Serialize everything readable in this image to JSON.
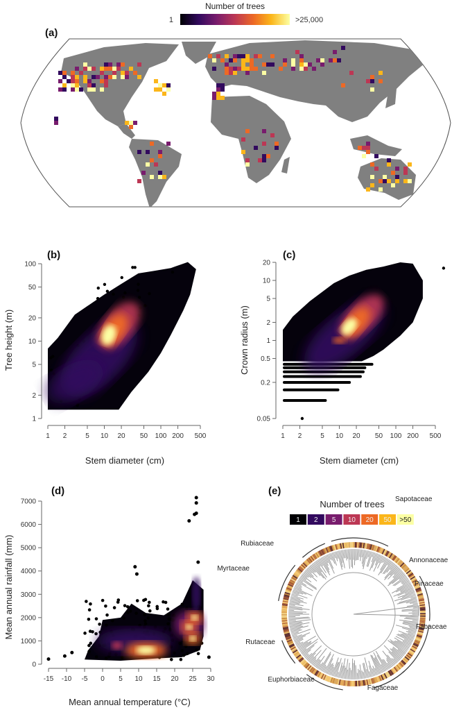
{
  "colors": {
    "inferno": [
      "#000004",
      "#320a5e",
      "#781c6d",
      "#bc3754",
      "#ed6925",
      "#fbb61a",
      "#fcffa4"
    ],
    "land": "#808080",
    "tree_branches": "#9a9a9a"
  },
  "chart_data": [
    {
      "panel": "(a)",
      "type": "heatmap",
      "legend": {
        "title": "Number of trees",
        "min_label": "1",
        "max_label": ">25,000",
        "colormap": "inferno",
        "placement": "top-center"
      },
      "projection": "world map"
    },
    {
      "panel": "(b)",
      "type": "scatter",
      "xlabel": "Stem diameter (cm)",
      "ylabel": "Tree height (m)",
      "xscale": "log",
      "yscale": "log",
      "xlim": [
        1,
        500
      ],
      "ylim": [
        1,
        100
      ],
      "xticks": [
        "1",
        "2",
        "5",
        "10",
        "20",
        "50",
        "100",
        "200",
        "500"
      ],
      "yticks": [
        "1",
        "2",
        "5",
        "10",
        "20",
        "50",
        "100"
      ],
      "density_peak": {
        "x": 12,
        "y": 12
      },
      "colormap": "inferno"
    },
    {
      "panel": "(c)",
      "type": "scatter",
      "xlabel": "Stem diameter (cm)",
      "ylabel": "Crown radius (m)",
      "xscale": "log",
      "yscale": "log",
      "xlim": [
        1,
        500
      ],
      "ylim": [
        0.05,
        20
      ],
      "xticks": [
        "1",
        "2",
        "5",
        "10",
        "20",
        "50",
        "100",
        "200",
        "500"
      ],
      "yticks": [
        "0.05",
        "0.2",
        "0.5",
        "1",
        "2",
        "5",
        "10",
        "20"
      ],
      "density_peak": {
        "x": 15,
        "y": 1.7
      },
      "colormap": "inferno"
    },
    {
      "panel": "(d)",
      "type": "scatter",
      "xlabel": "Mean annual temperature (°C)",
      "ylabel": "Mean annual rainfall (mm)",
      "xlim": [
        -15,
        30
      ],
      "ylim": [
        0,
        7000
      ],
      "xticks": [
        "-15",
        "-10",
        "-5",
        "0",
        "5",
        "10",
        "15",
        "20",
        "25",
        "30"
      ],
      "yticks": [
        "0",
        "1000",
        "2000",
        "3000",
        "4000",
        "5000",
        "6000",
        "7000"
      ],
      "density_peaks": [
        {
          "x": 12,
          "y": 600
        },
        {
          "x": 25,
          "y": 1100
        },
        {
          "x": 24,
          "y": 1600
        },
        {
          "x": 25.5,
          "y": 2000
        }
      ],
      "outliers": [
        {
          "x": -15,
          "y": 220
        },
        {
          "x": -10.5,
          "y": 350
        },
        {
          "x": -8.5,
          "y": 500
        },
        {
          "x": 9,
          "y": 4180
        },
        {
          "x": 9.5,
          "y": 3870
        },
        {
          "x": 24,
          "y": 6150
        },
        {
          "x": 25.5,
          "y": 6430
        },
        {
          "x": 26,
          "y": 6480
        },
        {
          "x": 26,
          "y": 6920
        },
        {
          "x": 26,
          "y": 7150
        },
        {
          "x": 26.5,
          "y": 4380
        },
        {
          "x": 29.5,
          "y": 300
        }
      ],
      "colormap": "inferno"
    },
    {
      "panel": "(e)",
      "type": "other",
      "description_kind": "circular phylogeny",
      "legend": {
        "title": "Number of trees",
        "bins": [
          "1",
          "2",
          "5",
          "10",
          "20",
          "50",
          ">50"
        ]
      },
      "families": [
        "Sapotaceae",
        "Annonaceae",
        "Pinaceae",
        "Fabaceae",
        "Fagaceae",
        "Euphorbiaceae",
        "Rutaceae",
        "Myrtaceae",
        "Rubiaceae"
      ]
    }
  ]
}
